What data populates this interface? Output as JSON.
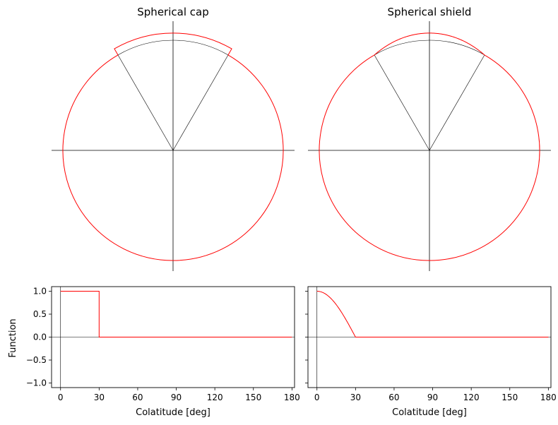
{
  "colors": {
    "model": "#ff0000",
    "reference": "#000000"
  },
  "chart_data": [
    {
      "type": "line",
      "title": "Spherical cap",
      "kind": "polar-geometry",
      "half_angle_deg": 30,
      "sphere_radius": 1.0,
      "cap_radius": 1.065
    },
    {
      "type": "line",
      "title": "Spherical shield",
      "kind": "polar-geometry",
      "half_angle_deg": 30,
      "sphere_radius": 1.0,
      "cap_radius": 1.065
    },
    {
      "type": "line",
      "xlabel": "Colatitude  [deg]",
      "ylabel": "Function",
      "xlim": [
        -7,
        182
      ],
      "ylim": [
        -1.1,
        1.1
      ],
      "xticks": [
        0,
        30,
        60,
        90,
        120,
        150,
        180
      ],
      "yticks": [
        1.0,
        0.5,
        0.0,
        -0.5,
        -1.0
      ],
      "ytick_labels": [
        "1.0",
        "0.5",
        "0.0",
        "−0.5",
        "−1.0"
      ],
      "series": [
        {
          "x": [
            0,
            30,
            30,
            180
          ],
          "y": [
            1,
            1,
            0,
            0
          ]
        }
      ]
    },
    {
      "type": "line",
      "xlabel": "Colatitude  [deg]",
      "ylabel": "",
      "xlim": [
        -7,
        182
      ],
      "ylim": [
        -1.1,
        1.1
      ],
      "xticks": [
        0,
        30,
        60,
        90,
        120,
        150,
        180
      ],
      "series": [
        {
          "x": [
            0,
            5,
            10,
            15,
            20,
            25,
            30,
            180
          ],
          "y": [
            1.0,
            0.966,
            0.866,
            0.707,
            0.5,
            0.259,
            0.0,
            0.0
          ]
        }
      ]
    }
  ]
}
